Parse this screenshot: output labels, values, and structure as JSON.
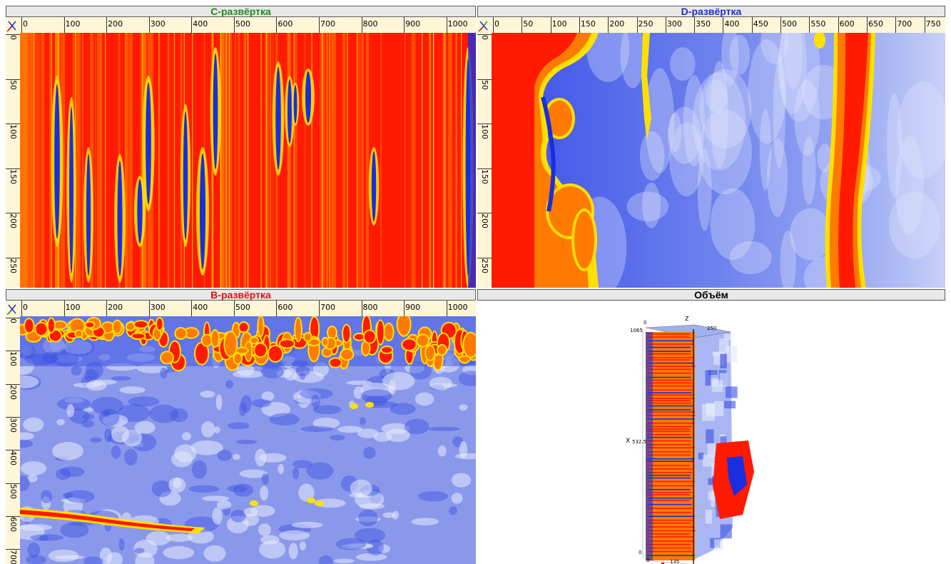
{
  "panels": {
    "c_scan": {
      "title": "C-развёртка",
      "title_color": "#1f8a1f",
      "x_ticks": [
        "0",
        "100",
        "200",
        "300",
        "400",
        "500",
        "600",
        "700",
        "800",
        "900",
        "1000"
      ],
      "y_ticks": [
        "0",
        "50",
        "100",
        "150",
        "200",
        "250"
      ]
    },
    "d_scan": {
      "title": "D-развёртка",
      "title_color": "#1a2fd0",
      "x_ticks": [
        "0",
        "50",
        "100",
        "150",
        "200",
        "250",
        "300",
        "350",
        "400",
        "450",
        "500",
        "550",
        "600",
        "650",
        "700",
        "750"
      ],
      "y_ticks": [
        "0",
        "50",
        "100",
        "150",
        "200",
        "250"
      ]
    },
    "b_scan": {
      "title": "B-развёртка",
      "title_color": "#e01010",
      "x_ticks": [
        "0",
        "100",
        "200",
        "300",
        "400",
        "500",
        "600",
        "700",
        "800",
        "900",
        "1000"
      ],
      "y_ticks": [
        "0",
        "100",
        "200",
        "300",
        "400",
        "500",
        "600",
        "700"
      ]
    },
    "volume": {
      "title": "Объём",
      "title_color": "#000000",
      "axis_z": "Z",
      "axis_x": "X",
      "label_1065": "1065",
      "label_5325": "532.5",
      "label_0_top": "0",
      "label_250": "250",
      "label_0_bottom": "0",
      "label_0_corner": "0",
      "label_135": "135"
    }
  },
  "colors": {
    "red": "#ff1a00",
    "orange": "#ff7a00",
    "yellow": "#ffe000",
    "blue": "#1a2ee0",
    "light_blue": "#c8d2f5"
  }
}
